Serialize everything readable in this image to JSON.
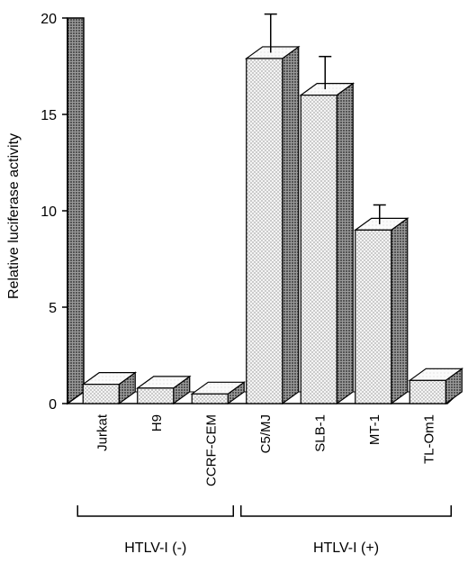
{
  "chart_data": {
    "type": "bar",
    "style": "3d",
    "ylabel": "Relative luciferase activity",
    "ylim": [
      0,
      20
    ],
    "yticks": [
      0,
      5,
      10,
      15,
      20
    ],
    "categories": [
      "Jurkat",
      "H9",
      "CCRF-CEM",
      "C5/MJ",
      "SLB-1",
      "MT-1",
      "TL-Om1"
    ],
    "values": [
      1.0,
      0.8,
      0.5,
      17.9,
      16.0,
      9.0,
      1.2
    ],
    "error_bars": [
      null,
      null,
      null,
      2.0,
      1.7,
      1.0,
      null
    ],
    "groups": [
      {
        "label": "HTLV-I (-)",
        "categories": [
          "Jurkat",
          "H9",
          "CCRF-CEM"
        ]
      },
      {
        "label": "HTLV-I (+)",
        "categories": [
          "C5/MJ",
          "SLB-1",
          "MT-1",
          "TL-Om1"
        ]
      }
    ],
    "grid": false,
    "colors": {
      "bar_front": "#f2f2f2",
      "bar_side": "#6e6e6e",
      "bar_top": "#ffffff",
      "back_wall": "#7a7a7a"
    }
  }
}
